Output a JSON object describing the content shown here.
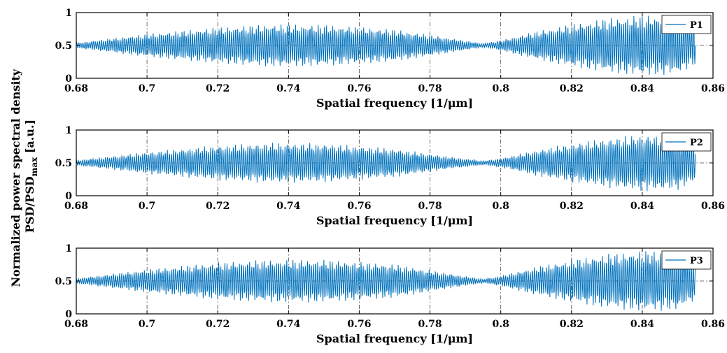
{
  "figure": {
    "ylabel_line1": "Normalized power spectral density",
    "ylabel_line2_main": "PSD/PSD",
    "ylabel_line2_sub": "max",
    "ylabel_line2_unit": " [a.u.]"
  },
  "colors": {
    "series": "#0072BD",
    "grid": "#262626",
    "axes": "#000000"
  },
  "chart_data": [
    {
      "type": "line",
      "xlabel": "Spatial frequency [1/μm]",
      "xlim": [
        0.68,
        0.86
      ],
      "ylim": [
        0,
        1
      ],
      "x_ticks": [
        "0.68",
        "0.7",
        "0.72",
        "0.74",
        "0.76",
        "0.78",
        "0.8",
        "0.82",
        "0.84",
        "0.86"
      ],
      "y_ticks": [
        "0",
        "0.5",
        "1"
      ],
      "grid": true,
      "legend_position": "top-right",
      "series": [
        {
          "name": "P1",
          "x_range": [
            0.68,
            0.855
          ],
          "envelope_x": [
            0.68,
            0.7,
            0.72,
            0.735,
            0.75,
            0.77,
            0.785,
            0.795,
            0.8,
            0.81,
            0.82,
            0.83,
            0.84,
            0.85,
            0.855
          ],
          "envelope_amplitude": [
            0.04,
            0.18,
            0.28,
            0.33,
            0.32,
            0.25,
            0.12,
            0.03,
            0.08,
            0.22,
            0.33,
            0.42,
            0.47,
            0.45,
            0.3
          ]
        }
      ]
    },
    {
      "type": "line",
      "xlabel": "Spatial frequency [1/μm]",
      "xlim": [
        0.68,
        0.86
      ],
      "ylim": [
        0,
        1
      ],
      "x_ticks": [
        "0.68",
        "0.7",
        "0.72",
        "0.74",
        "0.76",
        "0.78",
        "0.8",
        "0.82",
        "0.84",
        "0.86"
      ],
      "y_ticks": [
        "0",
        "0.5",
        "1"
      ],
      "grid": true,
      "legend_position": "top-right",
      "series": [
        {
          "name": "P2",
          "x_range": [
            0.68,
            0.855
          ],
          "envelope_x": [
            0.68,
            0.7,
            0.72,
            0.735,
            0.75,
            0.77,
            0.785,
            0.795,
            0.8,
            0.81,
            0.82,
            0.83,
            0.84,
            0.85,
            0.855
          ],
          "envelope_amplitude": [
            0.04,
            0.17,
            0.27,
            0.31,
            0.3,
            0.22,
            0.1,
            0.03,
            0.07,
            0.2,
            0.3,
            0.38,
            0.44,
            0.42,
            0.28
          ]
        }
      ]
    },
    {
      "type": "line",
      "xlabel": "Spatial frequency [1/μm]",
      "xlim": [
        0.68,
        0.86
      ],
      "ylim": [
        0,
        1
      ],
      "x_ticks": [
        "0.68",
        "0.7",
        "0.72",
        "0.74",
        "0.76",
        "0.78",
        "0.8",
        "0.82",
        "0.84",
        "0.86"
      ],
      "y_ticks": [
        "0",
        "0.5",
        "1"
      ],
      "grid": true,
      "legend_position": "top-right",
      "series": [
        {
          "name": "P3",
          "x_range": [
            0.68,
            0.855
          ],
          "envelope_x": [
            0.68,
            0.7,
            0.72,
            0.735,
            0.75,
            0.77,
            0.785,
            0.795,
            0.8,
            0.81,
            0.82,
            0.83,
            0.84,
            0.85,
            0.855
          ],
          "envelope_amplitude": [
            0.04,
            0.18,
            0.29,
            0.33,
            0.33,
            0.26,
            0.12,
            0.03,
            0.08,
            0.22,
            0.33,
            0.42,
            0.47,
            0.45,
            0.3
          ]
        }
      ]
    }
  ]
}
